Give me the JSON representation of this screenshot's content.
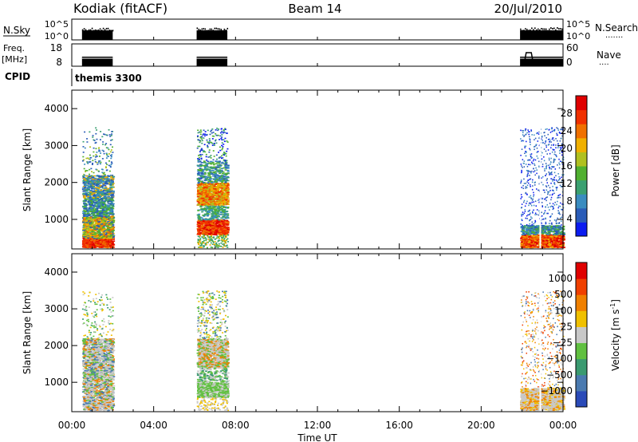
{
  "header": {
    "title": "Kodiak (fitACF)",
    "beam": "Beam 14",
    "date": "20/Jul/2010"
  },
  "colors": {
    "power": [
      "#0b1cf0",
      "#2a5cb8",
      "#3a8cc0",
      "#3aa070",
      "#50b030",
      "#b0c020",
      "#f0b000",
      "#f07000",
      "#f03000",
      "#e00000"
    ],
    "velocity": [
      "#2a4ab8",
      "#4a7ab0",
      "#3a9a70",
      "#60c040",
      "#c8c8c8",
      "#f0c000",
      "#f08000",
      "#f04000",
      "#e00000"
    ]
  },
  "time_axis": {
    "ticks": [
      "00:00",
      "04:00",
      "08:00",
      "12:00",
      "16:00",
      "20:00",
      "00:00"
    ],
    "xlabel": "Time UT"
  },
  "strip": {
    "nsky_label": "N.Sky",
    "nsearch_label": "N.Search",
    "nsky_ticks": [
      "10^5",
      "10^0"
    ],
    "nsearch_ticks": [
      "10^5",
      "10^0"
    ],
    "freq_label_top": "Freq.",
    "freq_label_bottom": "[MHz]",
    "freq_ticks": [
      "18",
      "8"
    ],
    "nave_label": "Nave",
    "nave_ticks": [
      "60",
      "0"
    ],
    "cpid_label": "CPID",
    "cpid_value": "themis 3300"
  },
  "chart_data": [
    {
      "type": "heatmap",
      "name": "power",
      "ylabel": "Slant Range [km]",
      "ylim": [
        200,
        4500
      ],
      "yticks": [
        "1000",
        "2000",
        "3000",
        "4000"
      ],
      "xlim_hours": [
        0,
        24
      ],
      "colorbar_label": "Power [dB]",
      "colorbar_ticks": [
        "4",
        "8",
        "12",
        "16",
        "20",
        "24",
        "28"
      ],
      "data_intervals_hours": [
        [
          0.5,
          2.0
        ],
        [
          6.1,
          7.6
        ],
        [
          21.9,
          24.0
        ]
      ]
    },
    {
      "type": "heatmap",
      "name": "velocity",
      "ylabel": "Slant Range [km]",
      "ylim": [
        200,
        4500
      ],
      "yticks": [
        "1000",
        "2000",
        "3000",
        "4000"
      ],
      "xlim_hours": [
        0,
        24
      ],
      "colorbar_label": "Velocity [m s",
      "colorbar_label_sup": "-1",
      "colorbar_label_end": "]",
      "colorbar_ticks": [
        "1000",
        "500",
        "100",
        "25",
        "−25",
        "−100",
        "−500",
        "−1000"
      ],
      "data_intervals_hours": [
        [
          0.5,
          2.0
        ],
        [
          6.1,
          7.6
        ],
        [
          21.9,
          24.0
        ]
      ]
    }
  ]
}
